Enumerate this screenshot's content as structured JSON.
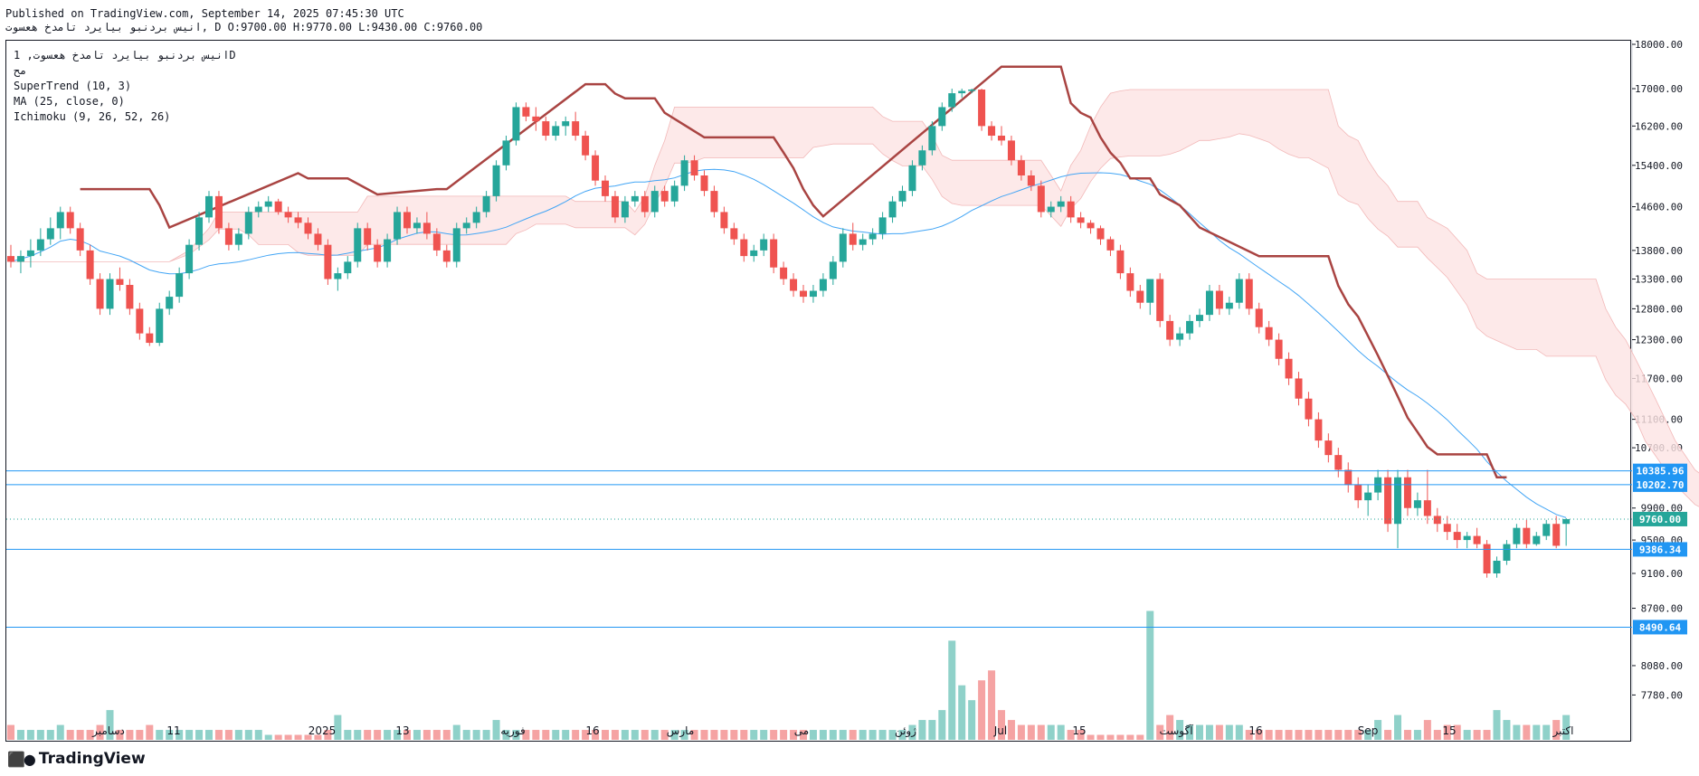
{
  "header": {
    "published": "Published on TradingView.com, September 14, 2025 07:45:30 UTC",
    "symbol_line": "انیس بردنبو بیایرد تامدخ هعسوت, D O:9700.00 H:9770.00 L:9430.00 C:9760.00"
  },
  "legend": {
    "title": "انیس بردنبو بیایرد تامدخ هعسوت, 1D",
    "subtitle": "مح",
    "indicators": [
      "SuperTrend (10, 3)",
      "MA (25, close, 0)",
      "Ichimoku (9, 26, 52, 26)"
    ]
  },
  "brand": {
    "name": "TradingView",
    "logo_icon": "tradingview-logo-icon"
  },
  "colors": {
    "up": "#26a69a",
    "down": "#ef5350",
    "vol_up": "#8fd1c9",
    "vol_down": "#f5a3a3",
    "supertrend_up": "#4caf50",
    "supertrend_down": "#a94442",
    "ma": "#42a5f5",
    "cloud_up": "#dff2df",
    "cloud_down": "#fde4e4",
    "hline": "#2196f3",
    "last_price": "#26a69a"
  },
  "chart_data": {
    "type": "candlestick",
    "y_axis": {
      "ticks": [
        18000,
        17000,
        16200,
        15400,
        14600,
        13800,
        13300,
        12800,
        12300,
        11700,
        11100,
        10700,
        9900,
        9500,
        9100,
        8700,
        8080,
        7780
      ],
      "labels": [
        "18000.00",
        "17000.00",
        "16200.00",
        "15400.00",
        "14600.00",
        "13800.00",
        "13300.00",
        "12800.00",
        "12300.00",
        "11700.00",
        "11100.00",
        "10700.00",
        "9900.00",
        "9500.00",
        "9100.00",
        "8700.00",
        "8080.00",
        "7780.00"
      ],
      "scale": "log"
    },
    "x_axis": {
      "labels": [
        "دسامبر",
        "11",
        "2025",
        "13",
        "فوریه",
        "16",
        "مارس",
        "می",
        "ژوئن",
        "Jul",
        "15",
        "آگوست",
        "16",
        "Sep",
        "15",
        "اکتبر"
      ]
    },
    "horizontal_levels": [
      "10385.96",
      "10202.70",
      "9386.34",
      "8490.64"
    ],
    "last_price": "9760.00",
    "ohlcv_estimated": [
      [
        13700,
        13900,
        13500,
        13600,
        0.3
      ],
      [
        13600,
        13800,
        13400,
        13700,
        0.2
      ],
      [
        13700,
        14000,
        13500,
        13800,
        0.2
      ],
      [
        13800,
        14200,
        13700,
        14000,
        0.2
      ],
      [
        14000,
        14400,
        13900,
        14200,
        0.2
      ],
      [
        14200,
        14600,
        14000,
        14500,
        0.3
      ],
      [
        14500,
        14600,
        14100,
        14200,
        0.2
      ],
      [
        14200,
        14300,
        13700,
        13800,
        0.2
      ],
      [
        13800,
        13900,
        13200,
        13300,
        0.2
      ],
      [
        13300,
        13400,
        12700,
        12800,
        0.3
      ],
      [
        12800,
        13400,
        12700,
        13300,
        0.6
      ],
      [
        13300,
        13500,
        13100,
        13200,
        0.2
      ],
      [
        13200,
        13300,
        12700,
        12800,
        0.2
      ],
      [
        12800,
        12900,
        12300,
        12400,
        0.2
      ],
      [
        12400,
        12500,
        12200,
        12250,
        0.3
      ],
      [
        12250,
        12900,
        12200,
        12800,
        0.2
      ],
      [
        12800,
        13100,
        12700,
        13000,
        0.2
      ],
      [
        13000,
        13500,
        12900,
        13400,
        0.2
      ],
      [
        13400,
        14000,
        13300,
        13900,
        0.2
      ],
      [
        13900,
        14500,
        13800,
        14400,
        0.2
      ],
      [
        14400,
        14900,
        14300,
        14800,
        0.2
      ],
      [
        14800,
        14900,
        14100,
        14200,
        0.2
      ],
      [
        14200,
        14300,
        13800,
        13900,
        0.2
      ],
      [
        13900,
        14200,
        13800,
        14100,
        0.2
      ],
      [
        14100,
        14600,
        14000,
        14500,
        0.2
      ],
      [
        14500,
        14700,
        14400,
        14600,
        0.2
      ],
      [
        14600,
        14800,
        14500,
        14700,
        0.1
      ],
      [
        14700,
        14750,
        14450,
        14500,
        0.1
      ],
      [
        14500,
        14600,
        14300,
        14400,
        0.1
      ],
      [
        14400,
        14500,
        14200,
        14300,
        0.1
      ],
      [
        14300,
        14400,
        14000,
        14100,
        0.1
      ],
      [
        14100,
        14200,
        13800,
        13900,
        0.1
      ],
      [
        13900,
        14000,
        13200,
        13300,
        0.2
      ],
      [
        13300,
        13500,
        13100,
        13400,
        0.5
      ],
      [
        13400,
        13700,
        13300,
        13600,
        0.2
      ],
      [
        13600,
        14300,
        13500,
        14200,
        0.2
      ],
      [
        14200,
        14300,
        13800,
        13900,
        0.2
      ],
      [
        13900,
        14000,
        13500,
        13600,
        0.2
      ],
      [
        13600,
        14100,
        13500,
        14000,
        0.2
      ],
      [
        14000,
        14600,
        13900,
        14500,
        0.2
      ],
      [
        14500,
        14600,
        14100,
        14200,
        0.2
      ],
      [
        14200,
        14400,
        14100,
        14300,
        0.2
      ],
      [
        14300,
        14500,
        14000,
        14100,
        0.2
      ],
      [
        14100,
        14200,
        13700,
        13800,
        0.2
      ],
      [
        13800,
        13900,
        13500,
        13600,
        0.2
      ],
      [
        13600,
        14300,
        13500,
        14200,
        0.3
      ],
      [
        14200,
        14400,
        14100,
        14300,
        0.2
      ],
      [
        14300,
        14600,
        14200,
        14500,
        0.2
      ],
      [
        14500,
        14900,
        14400,
        14800,
        0.2
      ],
      [
        14800,
        15500,
        14700,
        15400,
        0.4
      ],
      [
        15400,
        16000,
        15300,
        15900,
        0.2
      ],
      [
        15900,
        16700,
        15800,
        16600,
        0.2
      ],
      [
        16600,
        16700,
        16300,
        16400,
        0.2
      ],
      [
        16400,
        16600,
        16100,
        16300,
        0.2
      ],
      [
        16300,
        16400,
        15900,
        16000,
        0.2
      ],
      [
        16000,
        16300,
        15900,
        16200,
        0.2
      ],
      [
        16200,
        16400,
        16000,
        16300,
        0.2
      ],
      [
        16300,
        16500,
        15900,
        16000,
        0.2
      ],
      [
        16000,
        16100,
        15500,
        15600,
        0.2
      ],
      [
        15600,
        15700,
        15000,
        15100,
        0.2
      ],
      [
        15100,
        15200,
        14700,
        14800,
        0.2
      ],
      [
        14800,
        14900,
        14300,
        14400,
        0.2
      ],
      [
        14400,
        14800,
        14300,
        14700,
        0.2
      ],
      [
        14700,
        14900,
        14600,
        14800,
        0.2
      ],
      [
        14800,
        14900,
        14400,
        14500,
        0.2
      ],
      [
        14500,
        15000,
        14400,
        14900,
        0.2
      ],
      [
        14900,
        15000,
        14600,
        14700,
        0.2
      ],
      [
        14700,
        15100,
        14600,
        15000,
        0.2
      ],
      [
        15000,
        15600,
        14900,
        15500,
        0.2
      ],
      [
        15500,
        15600,
        15100,
        15200,
        0.2
      ],
      [
        15200,
        15300,
        14800,
        14900,
        0.2
      ],
      [
        14900,
        15000,
        14400,
        14500,
        0.2
      ],
      [
        14500,
        14600,
        14100,
        14200,
        0.2
      ],
      [
        14200,
        14300,
        13900,
        14000,
        0.2
      ],
      [
        14000,
        14100,
        13600,
        13700,
        0.2
      ],
      [
        13700,
        13900,
        13600,
        13800,
        0.2
      ],
      [
        13800,
        14100,
        13700,
        14000,
        0.2
      ],
      [
        14000,
        14100,
        13400,
        13500,
        0.2
      ],
      [
        13500,
        13600,
        13200,
        13300,
        0.2
      ],
      [
        13300,
        13400,
        13000,
        13100,
        0.2
      ],
      [
        13100,
        13200,
        12900,
        13000,
        0.2
      ],
      [
        13000,
        13200,
        12900,
        13100,
        0.2
      ],
      [
        13100,
        13400,
        13000,
        13300,
        0.2
      ],
      [
        13300,
        13700,
        13200,
        13600,
        0.2
      ],
      [
        13600,
        14200,
        13500,
        14100,
        0.2
      ],
      [
        14100,
        14300,
        13800,
        13900,
        0.2
      ],
      [
        13900,
        14100,
        13800,
        14000,
        0.2
      ],
      [
        14000,
        14200,
        13900,
        14100,
        0.2
      ],
      [
        14100,
        14500,
        14000,
        14400,
        0.2
      ],
      [
        14400,
        14800,
        14300,
        14700,
        0.2
      ],
      [
        14700,
        15000,
        14600,
        14900,
        0.2
      ],
      [
        14900,
        15500,
        14800,
        15400,
        0.3
      ],
      [
        15400,
        15800,
        15300,
        15700,
        0.4
      ],
      [
        15700,
        16300,
        15600,
        16200,
        0.4
      ],
      [
        16200,
        16700,
        16100,
        16600,
        0.6
      ],
      [
        16600,
        17000,
        16500,
        16900,
        2.0
      ],
      [
        16900,
        17000,
        16800,
        16950,
        1.1
      ],
      [
        16950,
        17000,
        16900,
        16980,
        0.8
      ],
      [
        16980,
        17000,
        16100,
        16200,
        1.2
      ],
      [
        16200,
        16300,
        15900,
        16000,
        1.4
      ],
      [
        16000,
        16200,
        15800,
        15900,
        0.6
      ],
      [
        15900,
        16000,
        15400,
        15500,
        0.4
      ],
      [
        15500,
        15600,
        15100,
        15200,
        0.3
      ],
      [
        15200,
        15300,
        14900,
        15000,
        0.3
      ],
      [
        15000,
        15100,
        14400,
        14500,
        0.3
      ],
      [
        14500,
        14700,
        14400,
        14600,
        0.3
      ],
      [
        14600,
        14800,
        14500,
        14700,
        0.3
      ],
      [
        14700,
        14800,
        14300,
        14400,
        0.2
      ],
      [
        14400,
        14500,
        14200,
        14300,
        0.2
      ],
      [
        14300,
        14350,
        14100,
        14200,
        0.1
      ],
      [
        14200,
        14250,
        13900,
        14000,
        0.1
      ],
      [
        14000,
        14050,
        13700,
        13800,
        0.1
      ],
      [
        13800,
        13900,
        13300,
        13400,
        0.1
      ],
      [
        13400,
        13500,
        13000,
        13100,
        0.1
      ],
      [
        13100,
        13200,
        12800,
        12900,
        0.1
      ],
      [
        12900,
        13300,
        12700,
        13300,
        2.6
      ],
      [
        13300,
        13400,
        12500,
        12600,
        0.3
      ],
      [
        12600,
        12700,
        12200,
        12300,
        0.5
      ],
      [
        12300,
        12500,
        12200,
        12400,
        0.4
      ],
      [
        12400,
        12700,
        12300,
        12600,
        0.3
      ],
      [
        12600,
        12800,
        12500,
        12700,
        0.3
      ],
      [
        12700,
        13200,
        12600,
        13100,
        0.3
      ],
      [
        13100,
        13200,
        12700,
        12800,
        0.3
      ],
      [
        12800,
        13000,
        12700,
        12900,
        0.3
      ],
      [
        12900,
        13400,
        12800,
        13300,
        0.3
      ],
      [
        13300,
        13400,
        12700,
        12800,
        0.2
      ],
      [
        12800,
        12900,
        12400,
        12500,
        0.2
      ],
      [
        12500,
        12600,
        12200,
        12300,
        0.2
      ],
      [
        12300,
        12400,
        11900,
        12000,
        0.2
      ],
      [
        12000,
        12100,
        11600,
        11700,
        0.2
      ],
      [
        11700,
        11800,
        11300,
        11400,
        0.2
      ],
      [
        11400,
        11500,
        11000,
        11100,
        0.2
      ],
      [
        11100,
        11200,
        10700,
        10800,
        0.2
      ],
      [
        10800,
        10900,
        10500,
        10600,
        0.2
      ],
      [
        10600,
        10700,
        10300,
        10400,
        0.2
      ],
      [
        10400,
        10500,
        10100,
        10200,
        0.2
      ],
      [
        10200,
        10300,
        9900,
        10000,
        0.2
      ],
      [
        10000,
        10200,
        9800,
        10100,
        0.2
      ],
      [
        10100,
        10400,
        10000,
        10300,
        0.4
      ],
      [
        10300,
        10400,
        9600,
        9700,
        0.2
      ],
      [
        9700,
        10400,
        9400,
        10300,
        0.5
      ],
      [
        10300,
        10400,
        9800,
        9900,
        0.2
      ],
      [
        9900,
        10100,
        9800,
        10000,
        0.2
      ],
      [
        10000,
        10400,
        9700,
        9800,
        0.4
      ],
      [
        9800,
        9900,
        9600,
        9700,
        0.2
      ],
      [
        9700,
        9800,
        9500,
        9600,
        0.3
      ],
      [
        9600,
        9700,
        9400,
        9500,
        0.3
      ],
      [
        9500,
        9600,
        9400,
        9550,
        0.2
      ],
      [
        9550,
        9650,
        9400,
        9450,
        0.2
      ],
      [
        9450,
        9500,
        9050,
        9100,
        0.2
      ],
      [
        9100,
        9300,
        9050,
        9250,
        0.6
      ],
      [
        9250,
        9500,
        9200,
        9450,
        0.4
      ],
      [
        9450,
        9700,
        9400,
        9650,
        0.3
      ],
      [
        9650,
        9750,
        9400,
        9450,
        0.3
      ],
      [
        9450,
        9600,
        9430,
        9550,
        0.3
      ],
      [
        9550,
        9750,
        9500,
        9700,
        0.3
      ],
      [
        9700,
        9800,
        9400,
        9430,
        0.4
      ],
      [
        9700,
        9770,
        9430,
        9760,
        0.5
      ]
    ]
  }
}
